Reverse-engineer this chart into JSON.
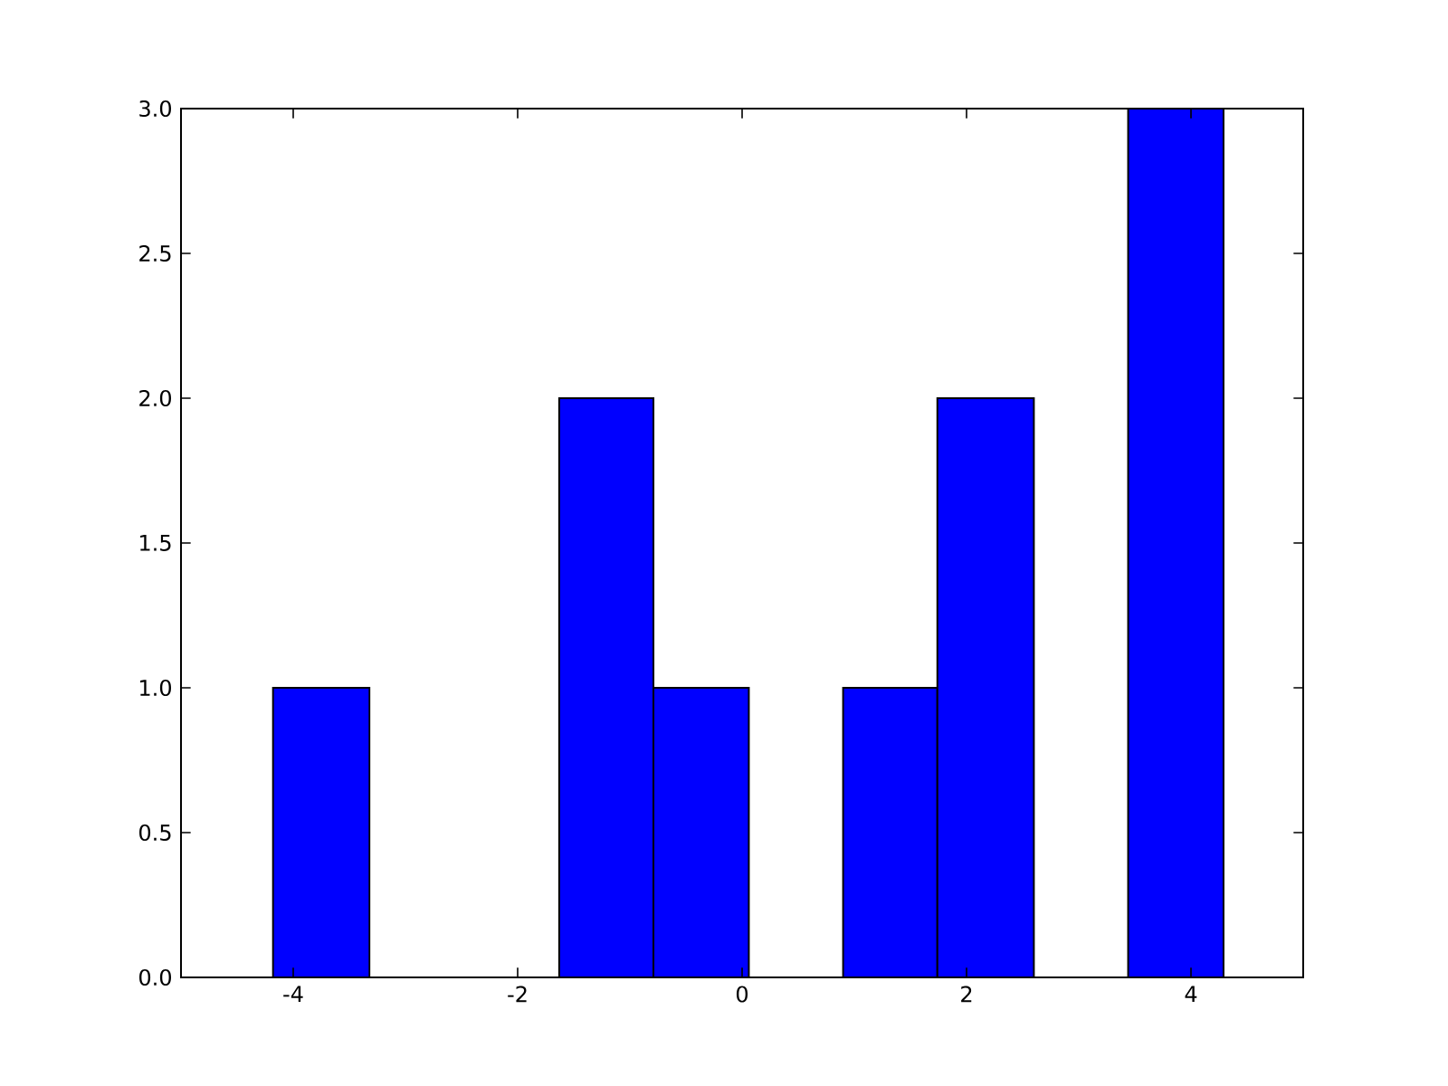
{
  "chart_data": {
    "type": "histogram",
    "bins": [
      -4.18,
      -3.32,
      -1.63,
      -0.79,
      0.06,
      0.9,
      1.74,
      2.6,
      3.44,
      4.29
    ],
    "values": [
      1,
      0,
      2,
      1,
      0,
      1,
      2,
      0,
      3
    ],
    "color": "#0000ff",
    "xlim": [
      -5,
      5
    ],
    "ylim": [
      0,
      3
    ],
    "xticks": [
      -4,
      -2,
      0,
      2,
      4
    ],
    "yticks": [
      {
        "value": 0,
        "label": "0.0"
      },
      {
        "value": 0.5,
        "label": "0.5"
      },
      {
        "value": 1,
        "label": "1.0"
      },
      {
        "value": 1.5,
        "label": "1.5"
      },
      {
        "value": 2,
        "label": "2.0"
      },
      {
        "value": 2.5,
        "label": "2.5"
      },
      {
        "value": 3,
        "label": "3.0"
      }
    ]
  }
}
